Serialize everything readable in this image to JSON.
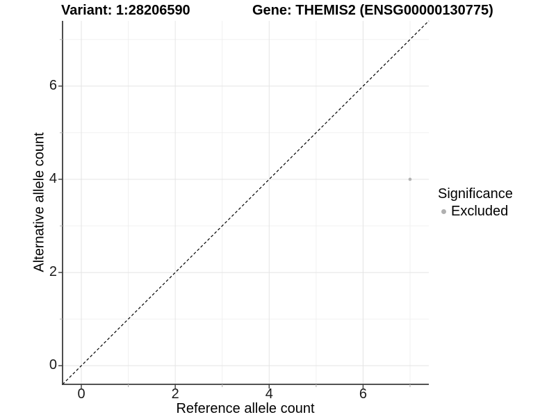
{
  "figure": {
    "title_left": "Variant: 1:28206590",
    "title_right": "Gene: THEMIS2 (ENSG00000130775)"
  },
  "axes": {
    "x_title": "Reference allele count",
    "y_title": "Alternative allele count"
  },
  "legend": {
    "title": "Significance",
    "items": [
      {
        "label": "Excluded",
        "color": "#b0b0b0"
      }
    ]
  },
  "colors": {
    "background": "#ffffff",
    "axis_line": "#3a3a3a",
    "major_grid": "#e4e4e4",
    "minor_grid": "#f0f0f0",
    "major_tick": "#3a3a3a",
    "minor_tick": "#b8b8b8",
    "reference_line": "#000000",
    "point": "#b3b3b3",
    "tick_label": "#1a1a1a"
  },
  "chart_data": {
    "type": "scatter",
    "title": "Variant: 1:28206590  |  Gene: THEMIS2 (ENSG00000130775)",
    "xlabel": "Reference allele count",
    "ylabel": "Alternative allele count",
    "xlim": [
      -0.4,
      7.4
    ],
    "ylim": [
      -0.4,
      7.4
    ],
    "x_major_ticks": [
      0,
      2,
      4,
      6
    ],
    "y_major_ticks": [
      0,
      2,
      4,
      6
    ],
    "x_minor_ticks": [
      1,
      3,
      5,
      7
    ],
    "y_minor_ticks": [
      1,
      3,
      5,
      7
    ],
    "grid": "on",
    "legend_position": "right",
    "series": [
      {
        "name": "Excluded",
        "color": "#b3b3b3",
        "points": [
          {
            "x": 7,
            "y": 4
          }
        ]
      }
    ],
    "reference_line": {
      "type": "identity y=x",
      "style": "dashed",
      "color": "#000000"
    }
  }
}
